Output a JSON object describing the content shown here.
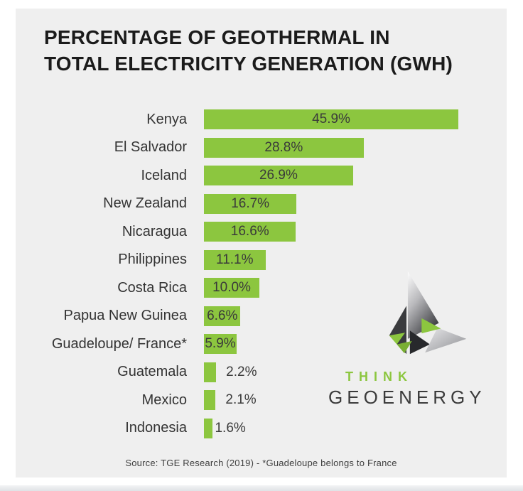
{
  "title": {
    "line1": "PERCENTAGE OF GEOTHERMAL IN",
    "line2": "TOTAL ELECTRICITY GENERATION (GWH)"
  },
  "chart_data": {
    "type": "bar",
    "orientation": "horizontal",
    "title": "PERCENTAGE OF GEOTHERMAL IN TOTAL ELECTRICITY GENERATION (GWH)",
    "categories": [
      "Kenya",
      "El Salvador",
      "Iceland",
      "New Zealand",
      "Nicaragua",
      "Philippines",
      "Costa Rica",
      "Papua New Guinea",
      "Guadeloupe/ France*",
      "Guatemala",
      "Mexico",
      "Indonesia"
    ],
    "values": [
      45.9,
      28.8,
      26.9,
      16.7,
      16.6,
      11.1,
      10.0,
      6.6,
      5.9,
      2.2,
      2.1,
      1.6
    ],
    "value_labels": [
      "45.9%",
      "28.8%",
      "26.9%",
      "16.7%",
      "16.6%",
      "11.1%",
      "10.0%",
      "6.6%",
      "5.9%",
      "2.2%",
      "2.1%",
      "1.6%"
    ],
    "xlabel": "",
    "ylabel": "",
    "xlim": [
      0,
      50
    ],
    "grid": false,
    "legend": "none",
    "bar_color": "#8cc63f",
    "label_placement_note": "values >= 5 shown centered inside bar, smaller values shown outside right of bar"
  },
  "source": "Source: TGE Research (2019) - *Guadeloupe belongs to France",
  "logo": {
    "think": "THINK",
    "geoenergy": "GEOENERGY",
    "green": "#8cc63f",
    "dark": "#3b3b3b",
    "mark": "origami-arrow-icon"
  },
  "colors": {
    "card_background": "#efefef",
    "page_background": "#ffffff",
    "bar": "#8cc63f",
    "title_text": "#1b1b1b",
    "label_text": "#333333",
    "value_text": "#3a3a3a"
  }
}
